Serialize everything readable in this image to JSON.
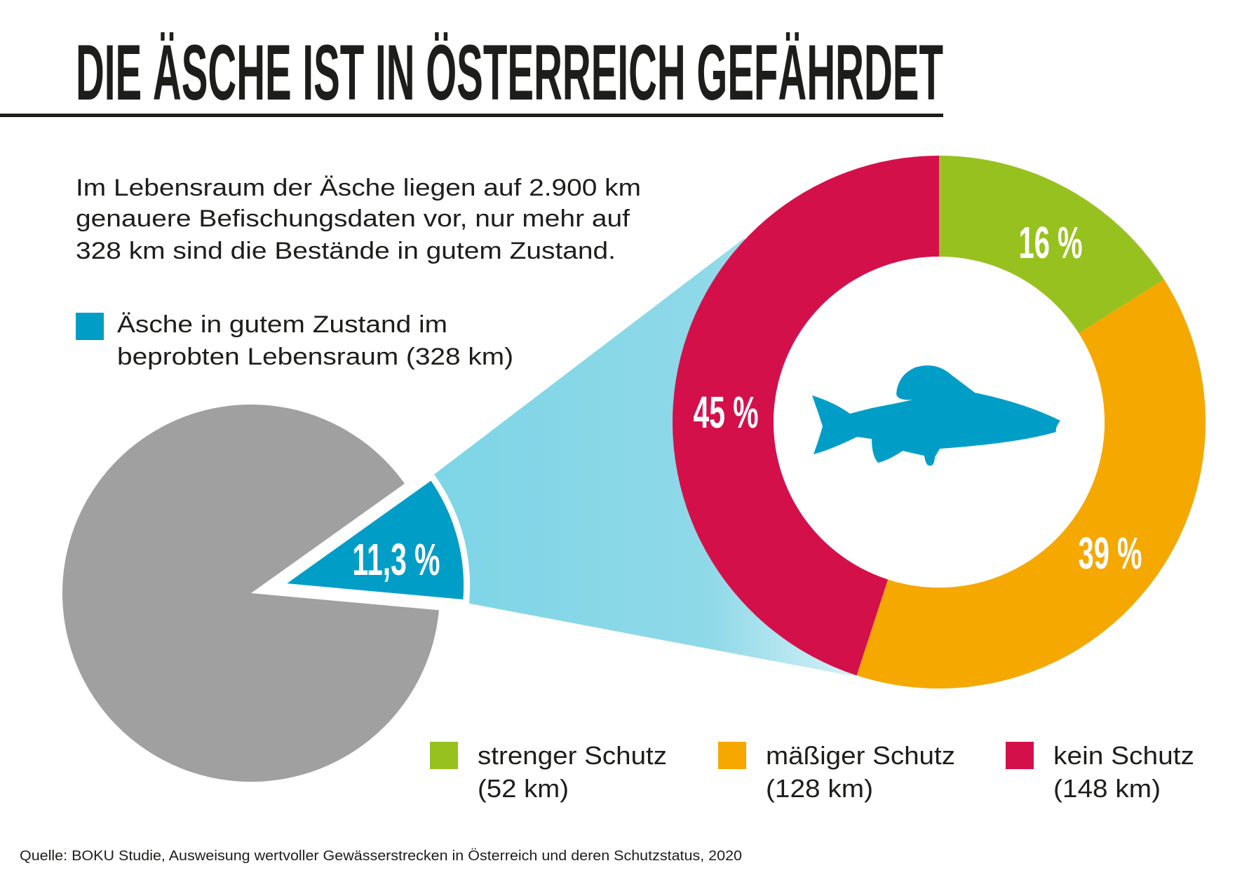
{
  "title": "DIE ÄSCHE IST IN ÖSTERREICH GEFÄHRDET",
  "intro": [
    "Im Lebensraum der Äsche liegen auf 2.900 km",
    "genauere Befischungsdaten vor, nur mehr auf",
    "328 km sind die Bestände in gutem Zustand."
  ],
  "legend_main": [
    "Äsche in gutem Zustand im",
    "beprobten Lebensraum (328 km)"
  ],
  "legend_bottom": [
    {
      "line1": "strenger Schutz",
      "line2": "(52 km)",
      "color": "#97c11f"
    },
    {
      "line1": "mäßiger Schutz",
      "line2": "(128 km)",
      "color": "#f5a800"
    },
    {
      "line1": "kein Schutz",
      "line2": "(148 km)",
      "color": "#d4104a"
    }
  ],
  "icons": {
    "center": "fish-icon"
  },
  "footer": "Quelle: BOKU Studie, Ausweisung wertvoller Gewässerstrecken in Österreich und deren Schutzstatus, 2020",
  "chart_data": [
    {
      "type": "pie",
      "slices": [
        {
          "label": "11,3 %",
          "value": 11.3,
          "color": "#009ec6",
          "exploded": true
        },
        {
          "label": "",
          "value": 88.7,
          "color": "#a0a0a0"
        }
      ]
    },
    {
      "type": "pie",
      "donut": true,
      "start": "top",
      "direction": "clockwise",
      "slices": [
        {
          "label": "16 %",
          "value": 16,
          "color": "#97c11f"
        },
        {
          "label": "39 %",
          "value": 39,
          "color": "#f5a800"
        },
        {
          "label": "45 %",
          "value": 45,
          "color": "#d4104a"
        }
      ]
    }
  ]
}
